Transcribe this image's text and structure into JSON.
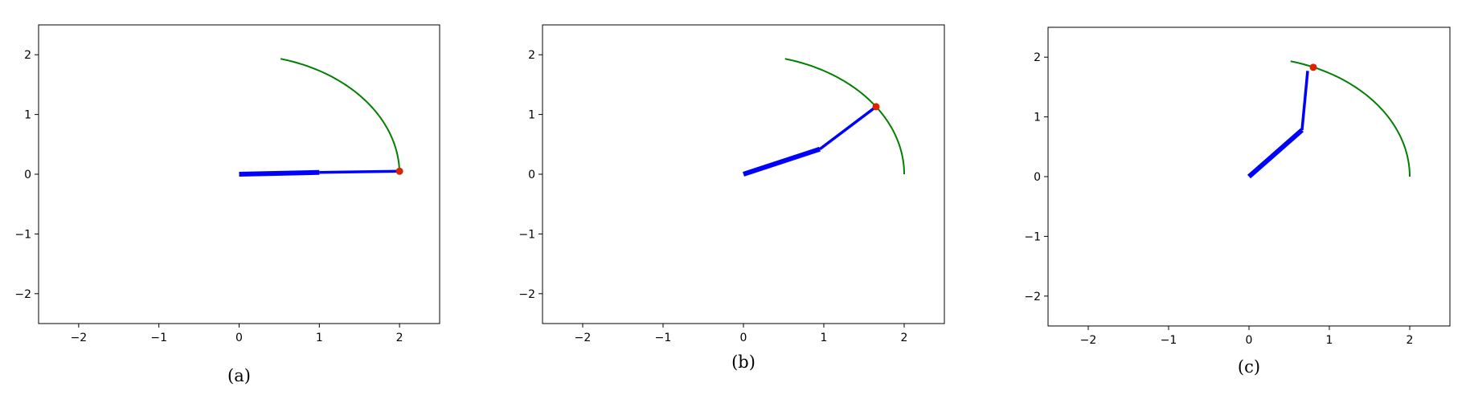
{
  "chart_data": [
    {
      "type": "line",
      "caption": "(a)",
      "xlim": [
        -2.5,
        2.5
      ],
      "ylim": [
        -2.5,
        2.5
      ],
      "xticks": [
        -2,
        -1,
        0,
        1,
        2
      ],
      "yticks": [
        -2,
        -1,
        0,
        1,
        2
      ],
      "x_tick_labels": [
        "−2",
        "−1",
        "0",
        "1",
        "2"
      ],
      "y_tick_labels": [
        "−2",
        "−1",
        "0",
        "1",
        "2"
      ],
      "grid": false,
      "arc": {
        "radius": 2.0,
        "start_deg": 0,
        "end_deg": 75,
        "color": "#008000"
      },
      "links": [
        {
          "from": [
            0,
            0
          ],
          "to": [
            1.0,
            0.03
          ],
          "color": "#0000ff",
          "weight": "thick"
        },
        {
          "from": [
            1.0,
            0.03
          ],
          "to": [
            2.0,
            0.05
          ],
          "color": "#0000ff",
          "weight": "thin"
        }
      ],
      "target": {
        "x": 2.0,
        "y": 0.05,
        "color": "#dd2200"
      }
    },
    {
      "type": "line",
      "caption": "(b)",
      "xlim": [
        -2.5,
        2.5
      ],
      "ylim": [
        -2.5,
        2.5
      ],
      "xticks": [
        -2,
        -1,
        0,
        1,
        2
      ],
      "yticks": [
        -2,
        -1,
        0,
        1,
        2
      ],
      "x_tick_labels": [
        "−2",
        "−1",
        "0",
        "1",
        "2"
      ],
      "y_tick_labels": [
        "−2",
        "−1",
        "0",
        "1",
        "2"
      ],
      "grid": false,
      "arc": {
        "radius": 2.0,
        "start_deg": 0,
        "end_deg": 75,
        "color": "#008000"
      },
      "links": [
        {
          "from": [
            0,
            0
          ],
          "to": [
            0.95,
            0.42
          ],
          "color": "#0000ff",
          "weight": "thick"
        },
        {
          "from": [
            0.95,
            0.42
          ],
          "to": [
            1.65,
            1.13
          ],
          "color": "#0000ff",
          "weight": "thin"
        }
      ],
      "target": {
        "x": 1.65,
        "y": 1.13,
        "color": "#dd2200"
      }
    },
    {
      "type": "line",
      "caption": "(c)",
      "xlim": [
        -2.5,
        2.5
      ],
      "ylim": [
        -2.5,
        2.5
      ],
      "xticks": [
        -2,
        -1,
        0,
        1,
        2
      ],
      "yticks": [
        -2,
        -1,
        0,
        1,
        2
      ],
      "x_tick_labels": [
        "−2",
        "−1",
        "0",
        "1",
        "2"
      ],
      "y_tick_labels": [
        "−2",
        "−1",
        "0",
        "1",
        "2"
      ],
      "grid": false,
      "arc": {
        "radius": 2.0,
        "start_deg": 0,
        "end_deg": 75,
        "color": "#008000"
      },
      "links": [
        {
          "from": [
            0,
            0
          ],
          "to": [
            0.66,
            0.78
          ],
          "color": "#0000ff",
          "weight": "thick"
        },
        {
          "from": [
            0.66,
            0.78
          ],
          "to": [
            0.73,
            1.77
          ],
          "color": "#0000ff",
          "weight": "thin"
        }
      ],
      "target": {
        "x": 0.8,
        "y": 1.83,
        "color": "#dd2200"
      }
    }
  ]
}
